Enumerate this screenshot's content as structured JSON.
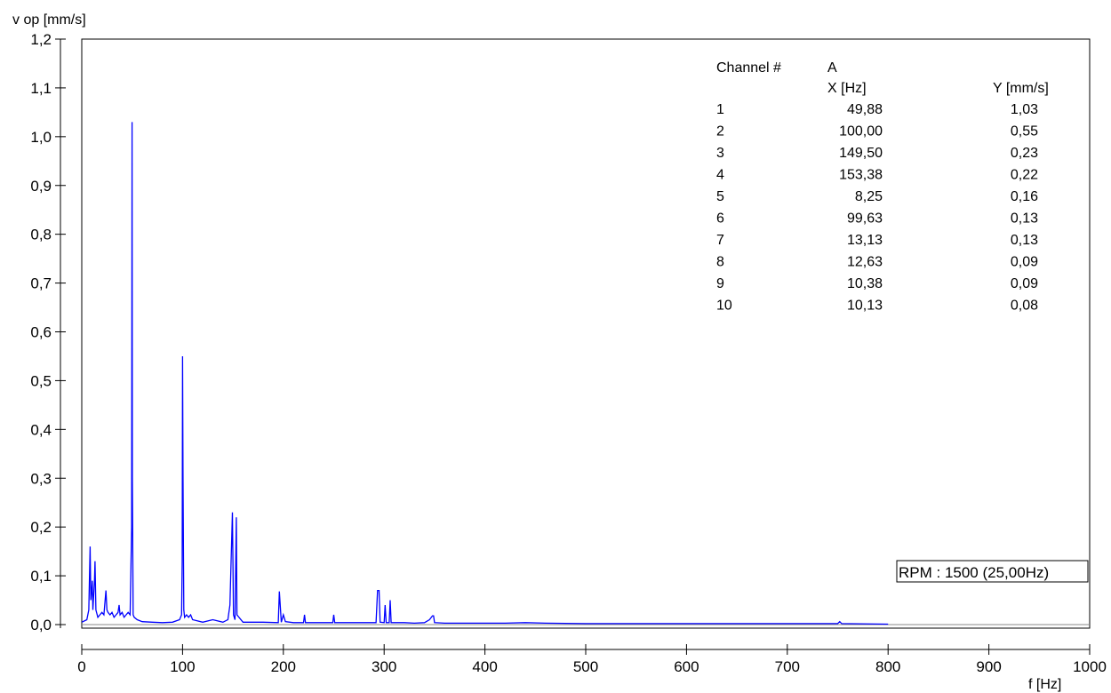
{
  "chart_data": {
    "type": "line",
    "ylabel": "v op [mm/s]",
    "xlabel": "f [Hz]",
    "xlim": [
      0,
      1000
    ],
    "ylim": [
      0,
      1.2
    ],
    "x_ticks": [
      {
        "value": 0,
        "label": "0"
      },
      {
        "value": 100,
        "label": "100"
      },
      {
        "value": 200,
        "label": "200"
      },
      {
        "value": 300,
        "label": "300"
      },
      {
        "value": 400,
        "label": "400"
      },
      {
        "value": 500,
        "label": "500"
      },
      {
        "value": 600,
        "label": "600"
      },
      {
        "value": 700,
        "label": "700"
      },
      {
        "value": 800,
        "label": "800"
      },
      {
        "value": 900,
        "label": "900"
      },
      {
        "value": 1000,
        "label": "1000"
      }
    ],
    "y_ticks": [
      {
        "value": 0.0,
        "label": "0,0"
      },
      {
        "value": 0.1,
        "label": "0,1"
      },
      {
        "value": 0.2,
        "label": "0,2"
      },
      {
        "value": 0.3,
        "label": "0,3"
      },
      {
        "value": 0.4,
        "label": "0,4"
      },
      {
        "value": 0.5,
        "label": "0,5"
      },
      {
        "value": 0.6,
        "label": "0,6"
      },
      {
        "value": 0.7,
        "label": "0,7"
      },
      {
        "value": 0.8,
        "label": "0,8"
      },
      {
        "value": 0.9,
        "label": "0,9"
      },
      {
        "value": 1.0,
        "label": "1,0"
      },
      {
        "value": 1.1,
        "label": "1,1"
      },
      {
        "value": 1.2,
        "label": "1,2"
      }
    ],
    "series_color": "#0000ff",
    "series": [
      {
        "x": [
          0,
          5,
          7,
          8.25,
          9,
          10.13,
          10.38,
          11,
          12.63,
          13.13,
          14,
          16,
          18,
          20,
          22,
          24,
          25,
          26,
          28,
          30,
          32,
          34,
          36,
          37,
          38,
          40,
          42,
          44,
          46,
          48,
          49.5,
          49.88,
          50.2,
          51,
          52,
          55,
          60,
          70,
          80,
          90,
          97,
          99,
          99.63,
          100.0,
          100.4,
          101.2,
          102,
          104,
          106,
          108,
          110,
          120,
          130,
          140,
          145,
          147,
          149.5,
          150.5,
          152,
          153.38,
          154,
          160,
          180,
          195,
          196,
          198,
          200,
          202,
          210,
          220,
          221,
          222,
          240,
          249,
          250,
          251,
          260,
          280,
          292,
          293.5,
          295,
          296,
          300,
          301,
          302,
          305,
          306,
          307,
          310,
          320,
          330,
          340,
          345,
          348,
          349,
          350,
          360,
          380,
          400,
          420,
          440,
          460,
          500,
          600,
          700,
          750,
          752,
          754,
          800
        ],
        "y": [
          0.005,
          0.01,
          0.03,
          0.16,
          0.05,
          0.08,
          0.09,
          0.03,
          0.09,
          0.13,
          0.03,
          0.015,
          0.02,
          0.025,
          0.02,
          0.07,
          0.03,
          0.025,
          0.02,
          0.025,
          0.015,
          0.02,
          0.025,
          0.04,
          0.02,
          0.025,
          0.015,
          0.02,
          0.025,
          0.02,
          0.2,
          1.03,
          0.3,
          0.02,
          0.015,
          0.01,
          0.006,
          0.005,
          0.004,
          0.005,
          0.01,
          0.02,
          0.13,
          0.55,
          0.31,
          0.03,
          0.015,
          0.02,
          0.015,
          0.02,
          0.01,
          0.005,
          0.01,
          0.005,
          0.01,
          0.04,
          0.23,
          0.02,
          0.01,
          0.22,
          0.02,
          0.005,
          0.005,
          0.004,
          0.068,
          0.005,
          0.02,
          0.006,
          0.004,
          0.004,
          0.02,
          0.004,
          0.004,
          0.004,
          0.02,
          0.004,
          0.004,
          0.004,
          0.004,
          0.07,
          0.07,
          0.005,
          0.004,
          0.04,
          0.004,
          0.004,
          0.05,
          0.004,
          0.004,
          0.004,
          0.003,
          0.004,
          0.01,
          0.018,
          0.018,
          0.004,
          0.003,
          0.003,
          0.003,
          0.003,
          0.004,
          0.003,
          0.002,
          0.002,
          0.002,
          0.002,
          0.006,
          0.002,
          0.001
        ]
      }
    ],
    "peak_table": {
      "channel_label": "Channel #",
      "channel_value": "A",
      "x_header": "X [Hz]",
      "y_header": "Y [mm/s]",
      "rows": [
        {
          "n": "1",
          "x": "49,88",
          "y": "1,03"
        },
        {
          "n": "2",
          "x": "100,00",
          "y": "0,55"
        },
        {
          "n": "3",
          "x": "149,50",
          "y": "0,23"
        },
        {
          "n": "4",
          "x": "153,38",
          "y": "0,22"
        },
        {
          "n": "5",
          "x": "8,25",
          "y": "0,16"
        },
        {
          "n": "6",
          "x": "99,63",
          "y": "0,13"
        },
        {
          "n": "7",
          "x": "13,13",
          "y": "0,13"
        },
        {
          "n": "8",
          "x": "12,63",
          "y": "0,09"
        },
        {
          "n": "9",
          "x": "10,38",
          "y": "0,09"
        },
        {
          "n": "10",
          "x": "10,13",
          "y": "0,08"
        }
      ]
    },
    "rpm_label": "RPM : 1500 (25,00Hz)"
  }
}
